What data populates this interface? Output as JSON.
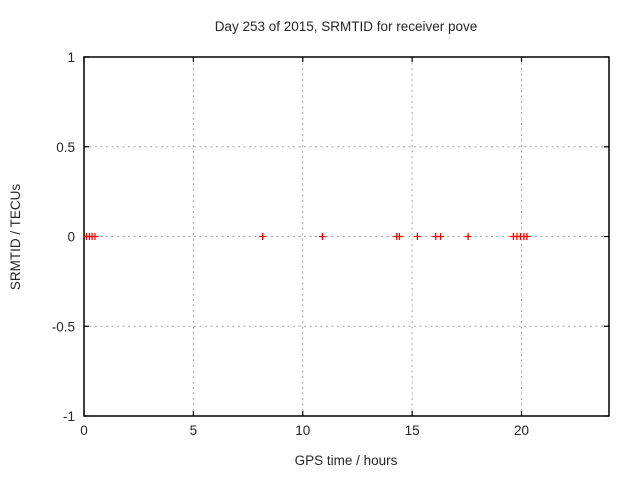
{
  "window": {
    "background": "#ffffff"
  },
  "chart_data": {
    "type": "scatter",
    "title": "Day 253 of 2015, SRMTID for receiver pove",
    "xlabel": "GPS time / hours",
    "ylabel": "SRMTID / TECUs",
    "xlim": [
      0,
      24
    ],
    "ylim": [
      -1,
      1
    ],
    "x_ticks": [
      0,
      5,
      10,
      15,
      20
    ],
    "x_tick_labels": [
      "0",
      "5",
      "10",
      "15",
      "20"
    ],
    "y_ticks": [
      1,
      0.5,
      0,
      -0.5,
      -1
    ],
    "y_tick_labels": [
      "1",
      "0.5",
      "0",
      "-0.5",
      "-1"
    ],
    "grid": true,
    "legend": false,
    "marker": "plus",
    "marker_color": "#ff0000",
    "grid_color": "#a8a8a8",
    "border_color": "#000000",
    "text_color": "#262626",
    "series": [
      {
        "name": "SRMTID",
        "x": [
          0.11,
          0.25,
          0.37,
          0.5,
          8.17,
          10.9,
          14.3,
          14.42,
          15.24,
          16.08,
          16.3,
          17.56,
          19.63,
          19.79,
          19.95,
          20.11,
          20.25
        ],
        "y": [
          0,
          0,
          0,
          0,
          0,
          0,
          0,
          0,
          0,
          0,
          0,
          0,
          0,
          0,
          0,
          0,
          0
        ]
      }
    ]
  }
}
